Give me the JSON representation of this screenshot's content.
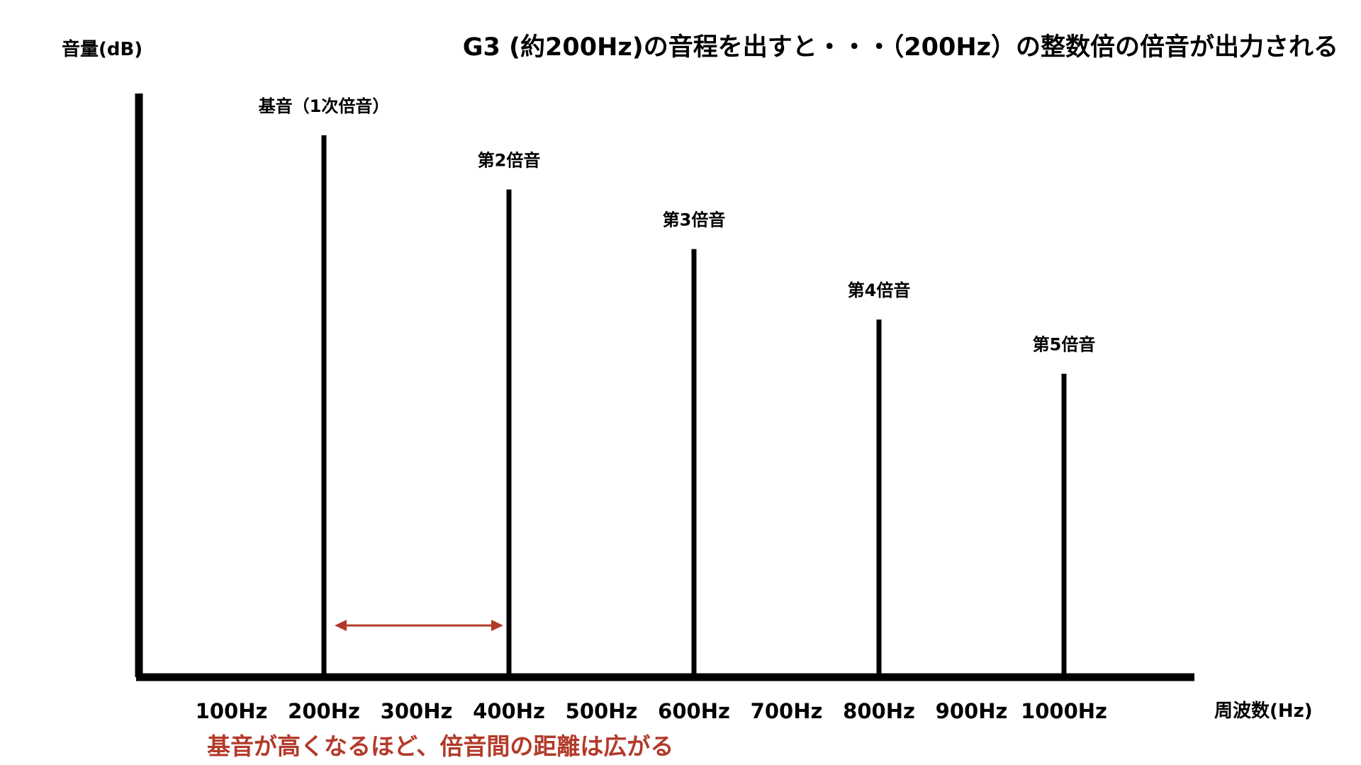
{
  "chart_data": {
    "type": "bar",
    "title": "G3 (約200Hz)の音程を出すと・・・（200Hz）の整数倍の倍音が出力される",
    "ylabel": "音量(dB)",
    "xlabel": "周波数(Hz)",
    "x_ticks": [
      {
        "value": 100,
        "label": "100Hz"
      },
      {
        "value": 200,
        "label": "200Hz"
      },
      {
        "value": 300,
        "label": "300Hz"
      },
      {
        "value": 400,
        "label": "400Hz"
      },
      {
        "value": 500,
        "label": "500Hz"
      },
      {
        "value": 600,
        "label": "600Hz"
      },
      {
        "value": 700,
        "label": "700Hz"
      },
      {
        "value": 800,
        "label": "800Hz"
      },
      {
        "value": 900,
        "label": "900Hz"
      },
      {
        "value": 1000,
        "label": "1000Hz"
      }
    ],
    "xlim": [
      0,
      1140
    ],
    "ylim": [
      0,
      1.1
    ],
    "y_ticks_shown": false,
    "grid": false,
    "legend": "none",
    "bars": [
      {
        "x": 200,
        "value": 1.0,
        "label": "基音（1次倍音）"
      },
      {
        "x": 400,
        "value": 0.9,
        "label": "第2倍音"
      },
      {
        "x": 600,
        "value": 0.79,
        "label": "第3倍音"
      },
      {
        "x": 800,
        "value": 0.66,
        "label": "第4倍音"
      },
      {
        "x": 1000,
        "value": 0.56,
        "label": "第5倍音"
      }
    ],
    "annotations": [
      {
        "type": "double-arrow",
        "from_x": 200,
        "to_x": 400,
        "color": "#b33a2a"
      },
      {
        "type": "text",
        "text": "基音が高くなるほど、倍音間の距離は広がる",
        "color": "#b33a2a"
      }
    ],
    "colors": {
      "bars": "#000000",
      "axes": "#000000",
      "accent": "#b33a2a"
    }
  }
}
